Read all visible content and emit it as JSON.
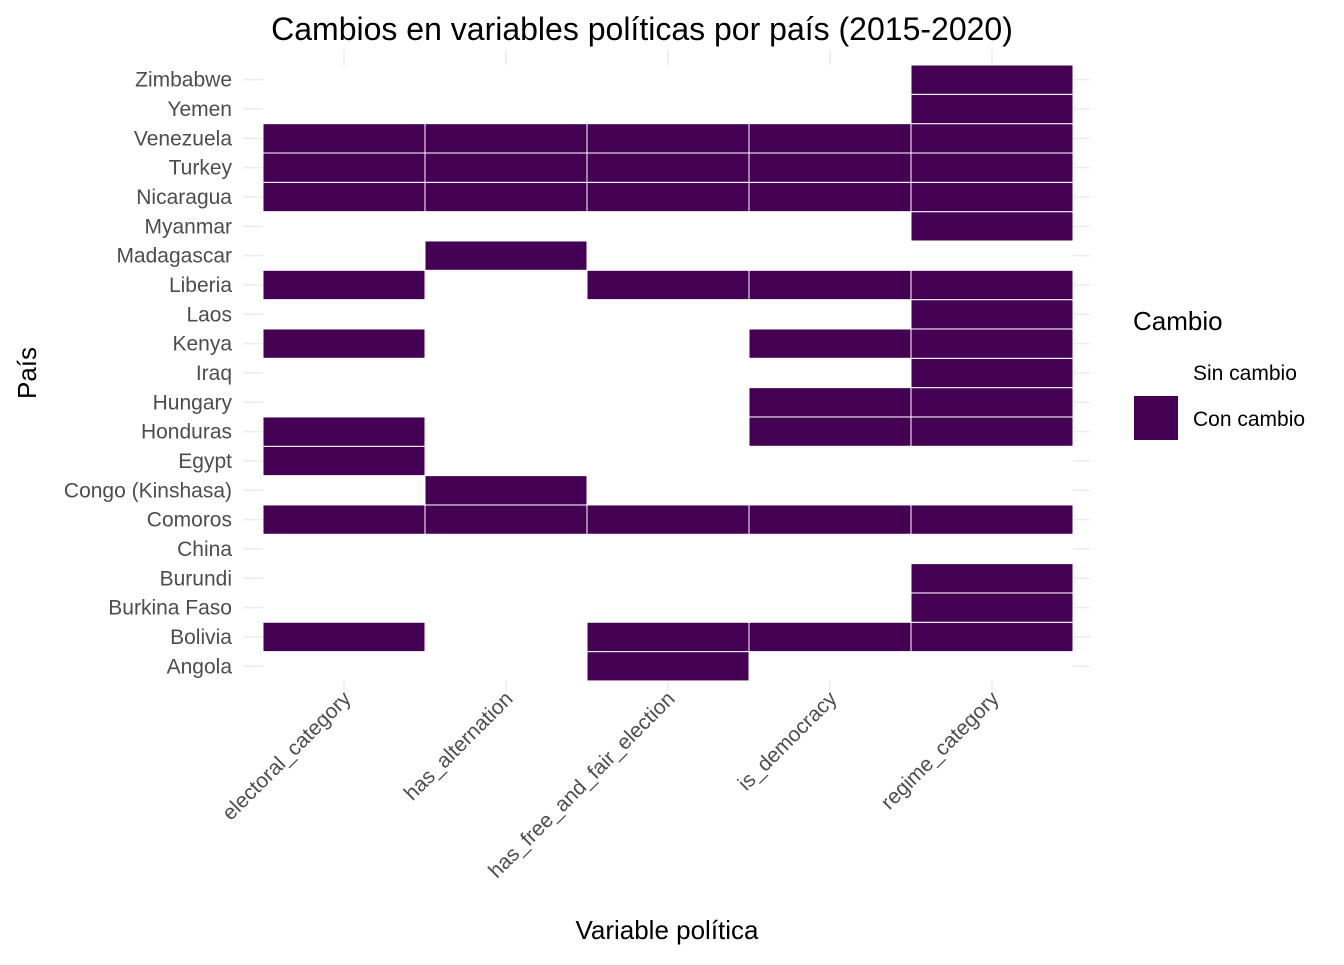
{
  "chart_data": {
    "type": "heatmap",
    "title": "Cambios en variables políticas por país (2015-2020)",
    "xlabel": "Variable política",
    "ylabel": "País",
    "x_categories": [
      "electoral_category",
      "has_alternation",
      "has_free_and_fair_election",
      "is_democracy",
      "regime_category"
    ],
    "y_categories": [
      "Angola",
      "Bolivia",
      "Burkina Faso",
      "Burundi",
      "China",
      "Comoros",
      "Congo (Kinshasa)",
      "Egypt",
      "Honduras",
      "Hungary",
      "Iraq",
      "Kenya",
      "Laos",
      "Liberia",
      "Madagascar",
      "Myanmar",
      "Nicaragua",
      "Turkey",
      "Venezuela",
      "Yemen",
      "Zimbabwe"
    ],
    "legend": {
      "title": "Cambio",
      "position": "right",
      "entries": [
        {
          "label": "Sin cambio",
          "color": "#ffffff"
        },
        {
          "label": "Con cambio",
          "color": "#440154"
        }
      ]
    },
    "colors": {
      "changed": "#440154",
      "unchanged": "#ffffff"
    },
    "grid": true,
    "matrix": [
      [
        0,
        0,
        1,
        0,
        0
      ],
      [
        1,
        0,
        1,
        1,
        1
      ],
      [
        0,
        0,
        0,
        0,
        1
      ],
      [
        0,
        0,
        0,
        0,
        1
      ],
      [
        0,
        0,
        0,
        0,
        0
      ],
      [
        1,
        1,
        1,
        1,
        1
      ],
      [
        0,
        1,
        0,
        0,
        0
      ],
      [
        1,
        0,
        0,
        0,
        0
      ],
      [
        1,
        0,
        0,
        1,
        1
      ],
      [
        0,
        0,
        0,
        1,
        1
      ],
      [
        0,
        0,
        0,
        0,
        1
      ],
      [
        1,
        0,
        0,
        1,
        1
      ],
      [
        0,
        0,
        0,
        0,
        1
      ],
      [
        1,
        0,
        1,
        1,
        1
      ],
      [
        0,
        1,
        0,
        0,
        0
      ],
      [
        0,
        0,
        0,
        0,
        1
      ],
      [
        1,
        1,
        1,
        1,
        1
      ],
      [
        1,
        1,
        1,
        1,
        1
      ],
      [
        1,
        1,
        1,
        1,
        1
      ],
      [
        0,
        0,
        0,
        0,
        1
      ],
      [
        0,
        0,
        0,
        0,
        1
      ]
    ]
  }
}
